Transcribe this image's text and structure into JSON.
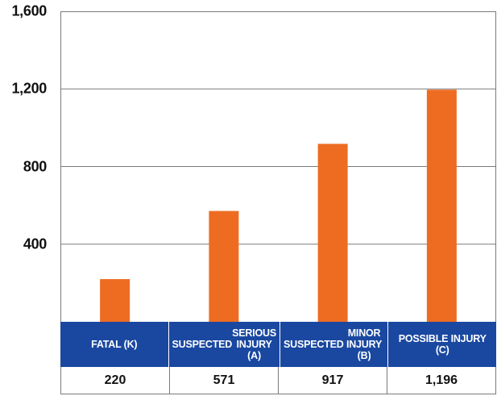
{
  "chart_data": {
    "type": "bar",
    "title": "",
    "xlabel": "",
    "ylabel": "",
    "categories": [
      "FATAL (K)",
      "SUSPECTED SERIOUS INJURY (A)",
      "SUSPECTED MINOR INJURY (B)",
      "POSSIBLE INJURY (C)"
    ],
    "category_lines": [
      [
        "FATAL (K)"
      ],
      [
        "SUSPECTED",
        "SERIOUS INJURY (A)"
      ],
      [
        "SUSPECTED",
        "MINOR INJURY (B)"
      ],
      [
        "POSSIBLE INJURY (C)"
      ]
    ],
    "values": [
      220,
      571,
      917,
      1196
    ],
    "value_labels": [
      "220",
      "571",
      "917",
      "1,196"
    ],
    "ylim": [
      0,
      1600
    ],
    "y_ticks": [
      400,
      800,
      1200,
      1600
    ],
    "y_tick_labels": [
      "400",
      "800",
      "1,200",
      "1,600"
    ],
    "grid": true,
    "colors": {
      "bar": "#ee6c22",
      "category_band": "#1a48a0",
      "grid": "#7a7a7a"
    }
  }
}
